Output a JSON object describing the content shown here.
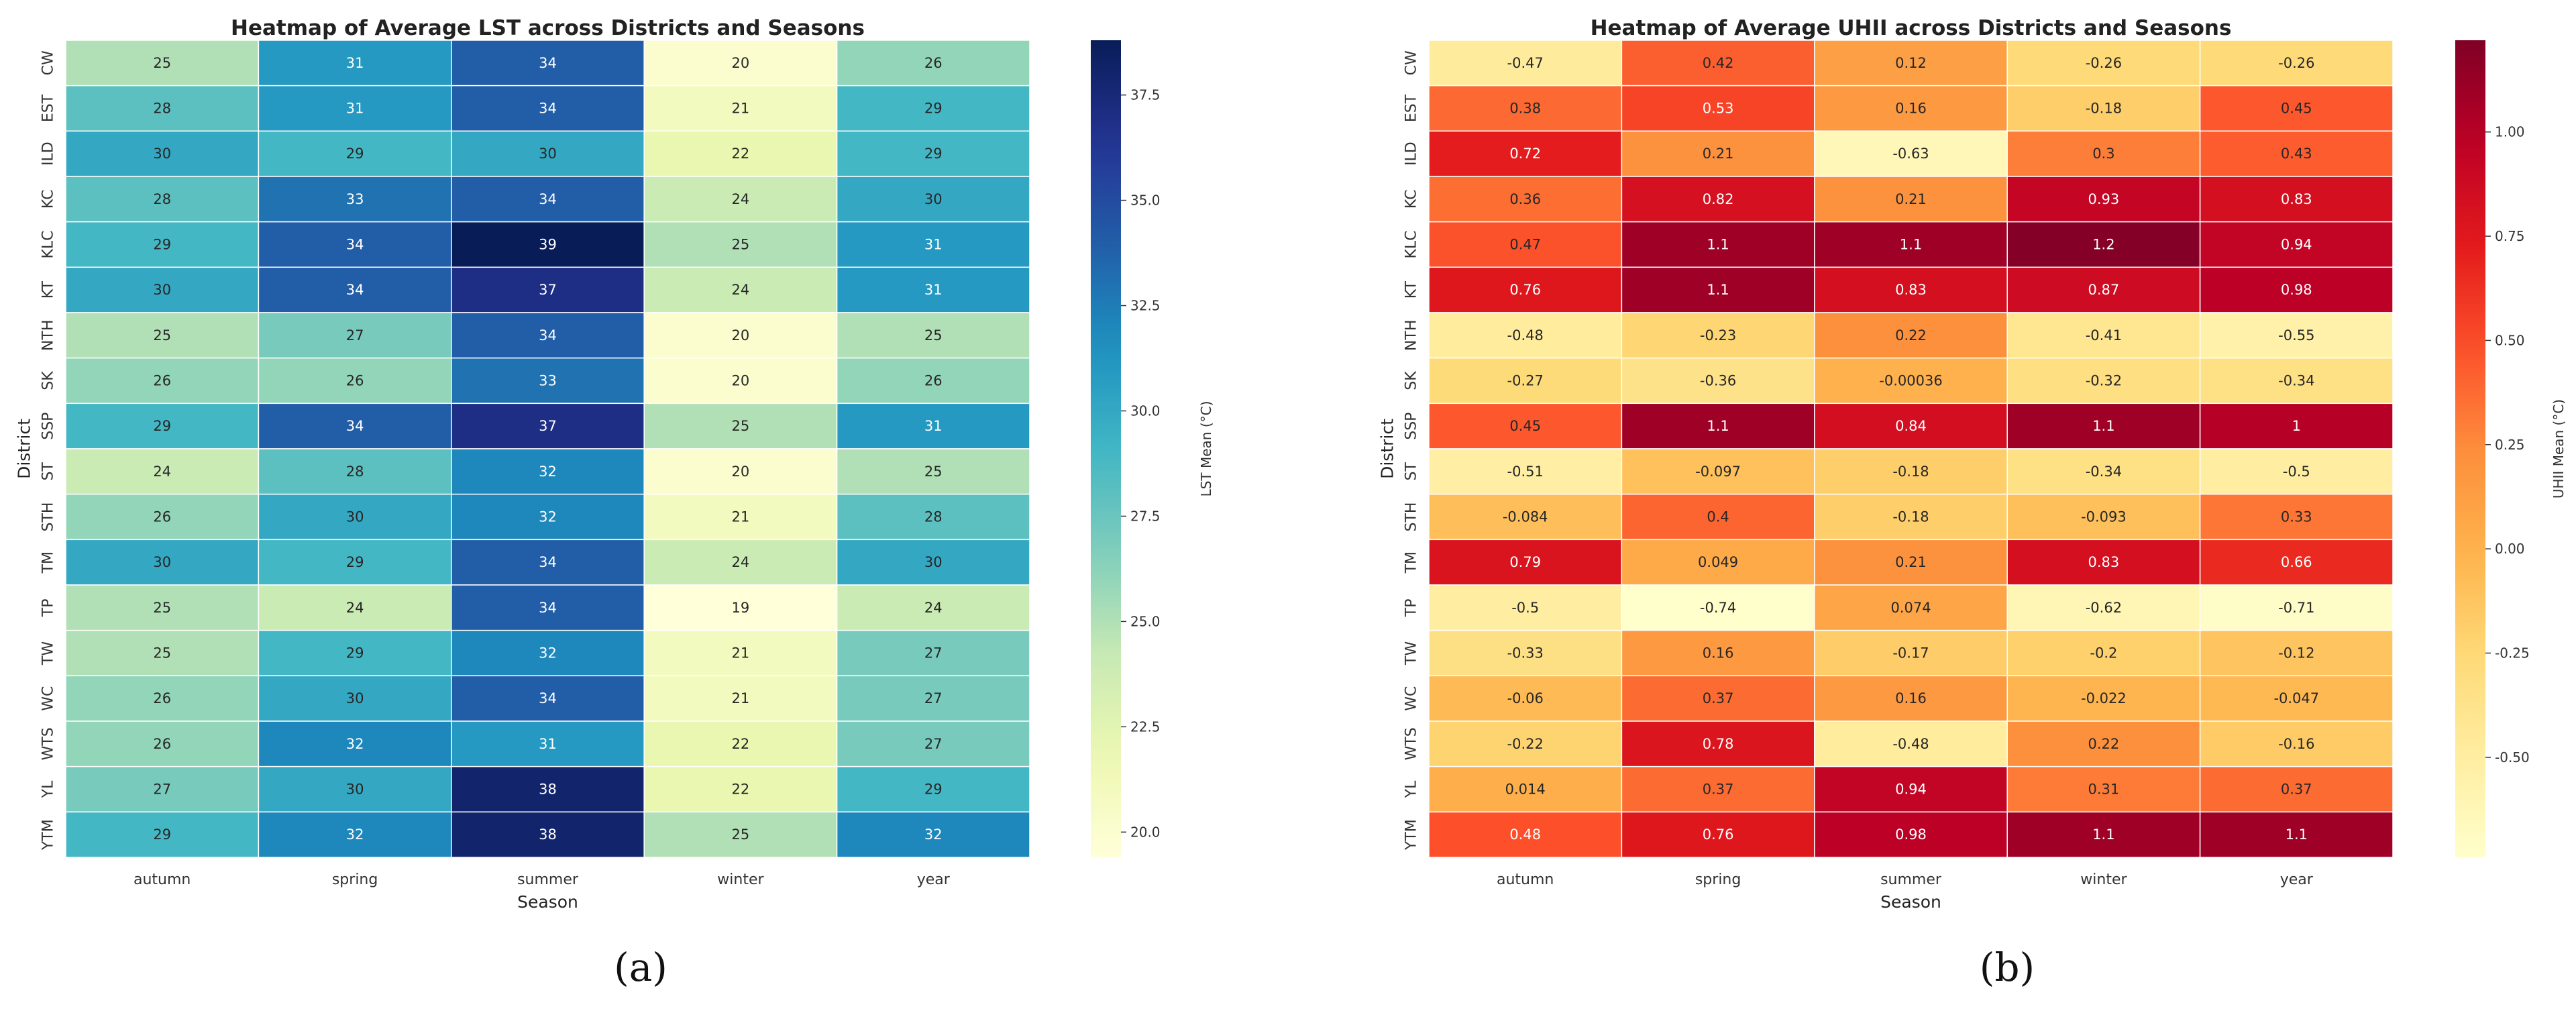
{
  "chart_data": [
    {
      "type": "heatmap",
      "title": "Heatmap of Average LST across Districts and Seasons",
      "xlabel": "Season",
      "ylabel": "District",
      "x_categories": [
        "autumn",
        "spring",
        "summer",
        "winter",
        "year"
      ],
      "y_categories": [
        "CW",
        "EST",
        "ILD",
        "KC",
        "KLC",
        "KT",
        "NTH",
        "SK",
        "SSP",
        "ST",
        "STH",
        "TM",
        "TP",
        "TW",
        "WC",
        "WTS",
        "YL",
        "YTM"
      ],
      "values": [
        [
          25,
          31,
          34,
          20,
          26
        ],
        [
          28,
          31,
          34,
          21,
          29
        ],
        [
          30,
          29,
          30,
          22,
          29
        ],
        [
          28,
          33,
          34,
          24,
          30
        ],
        [
          29,
          34,
          39,
          25,
          31
        ],
        [
          30,
          34,
          37,
          24,
          31
        ],
        [
          25,
          27,
          34,
          20,
          25
        ],
        [
          26,
          26,
          33,
          20,
          26
        ],
        [
          29,
          34,
          37,
          25,
          31
        ],
        [
          24,
          28,
          32,
          20,
          25
        ],
        [
          26,
          30,
          32,
          21,
          28
        ],
        [
          30,
          29,
          34,
          24,
          30
        ],
        [
          25,
          24,
          34,
          19,
          24
        ],
        [
          25,
          29,
          32,
          21,
          27
        ],
        [
          26,
          30,
          34,
          21,
          27
        ],
        [
          26,
          32,
          31,
          22,
          27
        ],
        [
          27,
          30,
          38,
          22,
          29
        ],
        [
          29,
          32,
          38,
          25,
          32
        ]
      ],
      "colormap": "YlGnBu",
      "colorbar": {
        "label": "LST Mean (°C)",
        "min": 19.4,
        "max": 38.8,
        "ticks": [
          "20.0",
          "22.5",
          "25.0",
          "27.5",
          "30.0",
          "32.5",
          "35.0",
          "37.5"
        ]
      },
      "caption": "(a)"
    },
    {
      "type": "heatmap",
      "title": "Heatmap of Average UHII across Districts and Seasons",
      "xlabel": "Season",
      "ylabel": "District",
      "x_categories": [
        "autumn",
        "spring",
        "summer",
        "winter",
        "year"
      ],
      "y_categories": [
        "CW",
        "EST",
        "ILD",
        "KC",
        "KLC",
        "KT",
        "NTH",
        "SK",
        "SSP",
        "ST",
        "STH",
        "TM",
        "TP",
        "TW",
        "WC",
        "WTS",
        "YL",
        "YTM"
      ],
      "values": [
        [
          -0.47,
          0.42,
          0.12,
          -0.26,
          -0.26
        ],
        [
          0.38,
          0.53,
          0.16,
          -0.18,
          0.45
        ],
        [
          0.72,
          0.21,
          -0.63,
          0.3,
          0.43
        ],
        [
          0.36,
          0.82,
          0.21,
          0.93,
          0.83
        ],
        [
          0.47,
          1.1,
          1.1,
          1.2,
          0.94
        ],
        [
          0.76,
          1.1,
          0.83,
          0.87,
          0.98
        ],
        [
          -0.48,
          -0.23,
          0.22,
          -0.41,
          -0.55
        ],
        [
          -0.27,
          -0.36,
          -0.00036,
          -0.32,
          -0.34
        ],
        [
          0.45,
          1.1,
          0.84,
          1.1,
          1
        ],
        [
          -0.51,
          -0.097,
          -0.18,
          -0.34,
          -0.5
        ],
        [
          -0.084,
          0.4,
          -0.18,
          -0.093,
          0.33
        ],
        [
          0.79,
          0.049,
          0.21,
          0.83,
          0.66
        ],
        [
          -0.5,
          -0.74,
          0.074,
          -0.62,
          -0.71
        ],
        [
          -0.33,
          0.16,
          -0.17,
          -0.2,
          -0.12
        ],
        [
          -0.06,
          0.37,
          0.16,
          -0.022,
          -0.047
        ],
        [
          -0.22,
          0.78,
          -0.48,
          0.22,
          -0.16
        ],
        [
          0.014,
          0.37,
          0.94,
          0.31,
          0.37
        ],
        [
          0.48,
          0.76,
          0.98,
          1.1,
          1.1
        ]
      ],
      "labels": [
        [
          "-0.47",
          "0.42",
          "0.12",
          "-0.26",
          "-0.26"
        ],
        [
          "0.38",
          "0.53",
          "0.16",
          "-0.18",
          "0.45"
        ],
        [
          "0.72",
          "0.21",
          "-0.63",
          "0.3",
          "0.43"
        ],
        [
          "0.36",
          "0.82",
          "0.21",
          "0.93",
          "0.83"
        ],
        [
          "0.47",
          "1.1",
          "1.1",
          "1.2",
          "0.94"
        ],
        [
          "0.76",
          "1.1",
          "0.83",
          "0.87",
          "0.98"
        ],
        [
          "-0.48",
          "-0.23",
          "0.22",
          "-0.41",
          "-0.55"
        ],
        [
          "-0.27",
          "-0.36",
          "-0.00036",
          "-0.32",
          "-0.34"
        ],
        [
          "0.45",
          "1.1",
          "0.84",
          "1.1",
          "1"
        ],
        [
          "-0.51",
          "-0.097",
          "-0.18",
          "-0.34",
          "-0.5"
        ],
        [
          "-0.084",
          "0.4",
          "-0.18",
          "-0.093",
          "0.33"
        ],
        [
          "0.79",
          "0.049",
          "0.21",
          "0.83",
          "0.66"
        ],
        [
          "-0.5",
          "-0.74",
          "0.074",
          "-0.62",
          "-0.71"
        ],
        [
          "-0.33",
          "0.16",
          "-0.17",
          "-0.2",
          "-0.12"
        ],
        [
          "-0.06",
          "0.37",
          "0.16",
          "-0.022",
          "-0.047"
        ],
        [
          "-0.22",
          "0.78",
          "-0.48",
          "0.22",
          "-0.16"
        ],
        [
          "0.014",
          "0.37",
          "0.94",
          "0.31",
          "0.37"
        ],
        [
          "0.48",
          "0.76",
          "0.98",
          "1.1",
          "1.1"
        ]
      ],
      "colormap": "YlOrRd",
      "colorbar": {
        "label": "UHII Mean (°C)",
        "min": -0.74,
        "max": 1.22,
        "ticks": [
          "-0.50",
          "-0.25",
          "0.00",
          "0.25",
          "0.50",
          "0.75",
          "1.00"
        ]
      },
      "caption": "(b)"
    }
  ]
}
